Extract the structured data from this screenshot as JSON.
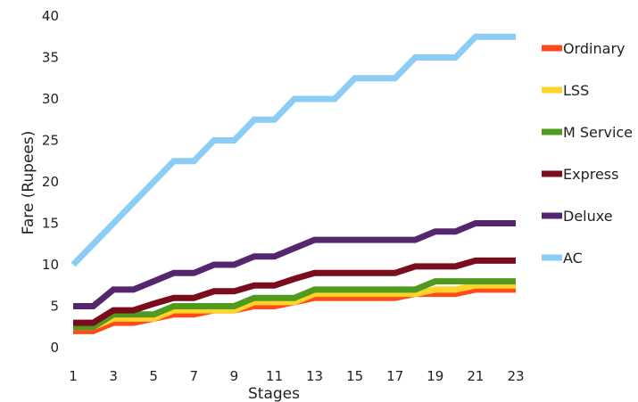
{
  "chart_data": {
    "type": "line",
    "title": "",
    "xlabel": "Stages",
    "ylabel": "Fare (Rupees)",
    "x": [
      1,
      2,
      3,
      4,
      5,
      6,
      7,
      8,
      9,
      10,
      11,
      12,
      13,
      14,
      15,
      16,
      17,
      18,
      19,
      20,
      21,
      22,
      23
    ],
    "xticks": [
      1,
      3,
      5,
      7,
      9,
      11,
      13,
      15,
      17,
      19,
      21,
      23
    ],
    "xtick_labels": [
      "1",
      "3",
      "5",
      "7",
      "9",
      "11",
      "13",
      "15",
      "17",
      "19",
      "21",
      "23"
    ],
    "xlim": [
      1,
      23
    ],
    "ylim": [
      0,
      40
    ],
    "yticks": [
      0,
      5,
      10,
      15,
      20,
      25,
      30,
      35,
      40
    ],
    "ytick_labels": [
      "0",
      "5",
      "10",
      "15",
      "20",
      "25",
      "30",
      "35",
      "40"
    ],
    "grid": false,
    "legend_position": "right",
    "series": [
      {
        "name": "Ordinary",
        "color": "#ff4a1c",
        "values": [
          2,
          2,
          3,
          3,
          3.5,
          4,
          4,
          4.5,
          4.5,
          5,
          5,
          5.5,
          6,
          6,
          6,
          6,
          6,
          6.5,
          6.5,
          6.5,
          7,
          7,
          7
        ]
      },
      {
        "name": "LSS",
        "color": "#ffd42a",
        "values": [
          2.5,
          2.5,
          3.5,
          3.5,
          3.5,
          4.5,
          4.5,
          4.5,
          4.5,
          5.5,
          5.5,
          5.5,
          6.5,
          6.5,
          6.5,
          6.5,
          6.5,
          6.5,
          7,
          7,
          7.5,
          7.5,
          7.5
        ]
      },
      {
        "name": "M Service",
        "color": "#4f9a1f",
        "values": [
          2.5,
          2.5,
          4,
          4,
          4,
          5,
          5,
          5,
          5,
          6,
          6,
          6,
          7,
          7,
          7,
          7,
          7,
          7,
          8,
          8,
          8,
          8,
          8
        ]
      },
      {
        "name": "Express",
        "color": "#7a0c1e",
        "values": [
          3,
          3,
          4.5,
          4.5,
          5.3,
          6,
          6,
          6.8,
          6.8,
          7.5,
          7.5,
          8.3,
          9,
          9,
          9,
          9,
          9,
          9.8,
          9.8,
          9.8,
          10.5,
          10.5,
          10.5
        ]
      },
      {
        "name": "Deluxe",
        "color": "#55256e",
        "values": [
          5,
          5,
          7,
          7,
          8,
          9,
          9,
          10,
          10,
          11,
          11,
          12,
          13,
          13,
          13,
          13,
          13,
          13,
          14,
          14,
          15,
          15,
          15
        ]
      },
      {
        "name": "AC",
        "color": "#8ccdf5",
        "values": [
          10,
          12.5,
          15,
          17.5,
          20,
          22.5,
          22.5,
          25,
          25,
          27.5,
          27.5,
          30,
          30,
          30,
          32.5,
          32.5,
          32.5,
          35,
          35,
          35,
          37.5,
          37.5,
          37.5
        ]
      }
    ]
  }
}
